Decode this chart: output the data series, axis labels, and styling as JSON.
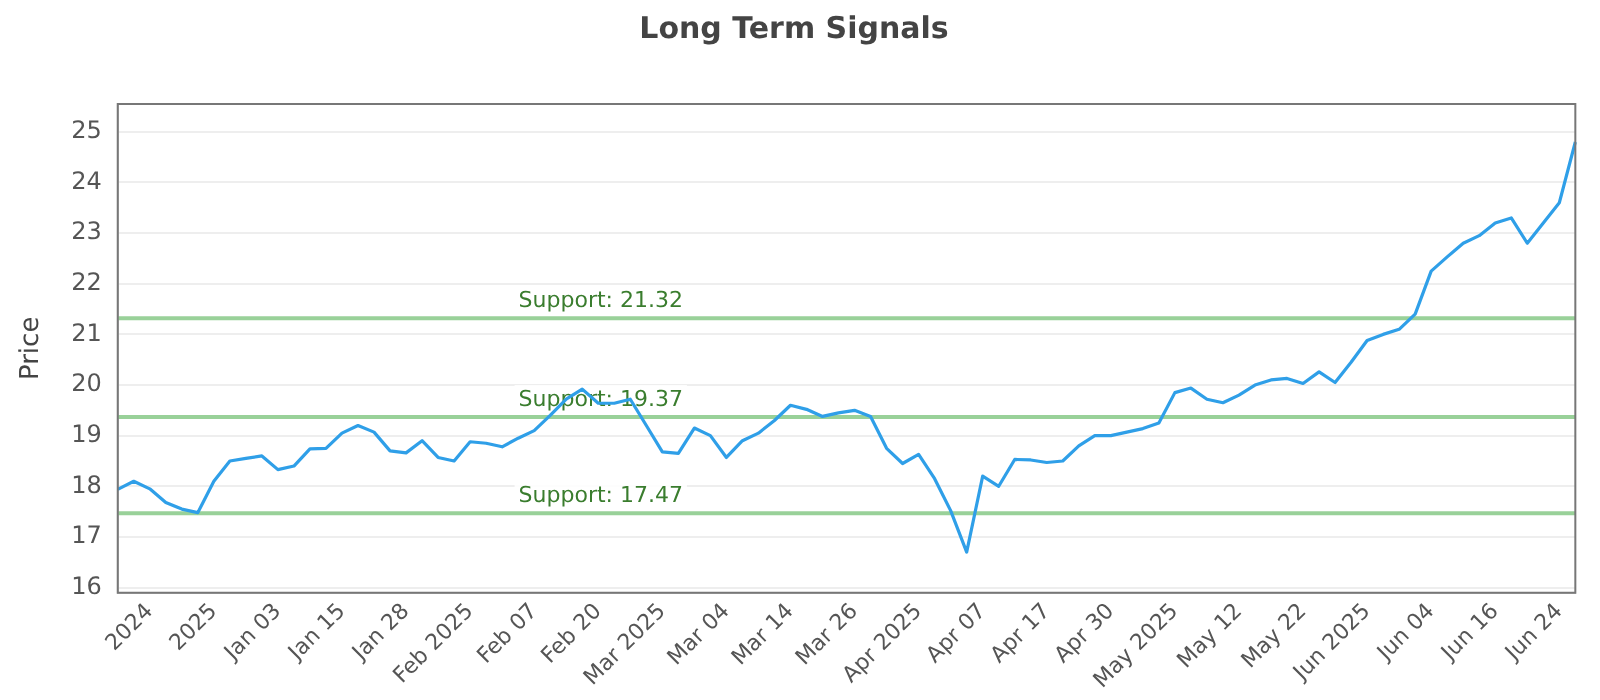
{
  "chart_data": {
    "type": "line",
    "title": "Long Term Signals",
    "ylabel": "Price",
    "categories": [
      null,
      null,
      "2024",
      null,
      null,
      null,
      "2025",
      null,
      null,
      null,
      "Jan 03",
      null,
      null,
      null,
      "Jan 15",
      null,
      null,
      null,
      "Jan 28",
      null,
      null,
      null,
      "Feb 2025",
      null,
      null,
      null,
      "Feb 07",
      null,
      null,
      null,
      "Feb 20",
      null,
      null,
      null,
      "Mar 2025",
      null,
      null,
      null,
      "Mar 04",
      null,
      null,
      null,
      "Mar 14",
      null,
      null,
      null,
      "Mar 26",
      null,
      null,
      null,
      "Apr 2025",
      null,
      null,
      null,
      "Apr 07",
      null,
      null,
      null,
      "Apr 17",
      null,
      null,
      null,
      "Apr 30",
      null,
      null,
      null,
      "May 2025",
      null,
      null,
      null,
      "May 12",
      null,
      null,
      null,
      "May 22",
      null,
      null,
      null,
      "Jun 2025",
      null,
      null,
      null,
      "Jun 04",
      null,
      null,
      null,
      "Jun 16",
      null,
      null,
      null,
      "Jun 24",
      null
    ],
    "series": [
      {
        "color": "#2f9fe8",
        "values": [
          17.94,
          18.1,
          17.95,
          17.68,
          17.55,
          17.48,
          18.1,
          18.5,
          18.55,
          18.6,
          18.33,
          18.4,
          18.74,
          18.75,
          19.05,
          19.2,
          19.07,
          18.7,
          18.66,
          18.9,
          18.57,
          18.5,
          18.88,
          18.85,
          18.78,
          18.95,
          19.1,
          19.4,
          19.72,
          19.92,
          19.64,
          19.64,
          19.72,
          19.2,
          18.68,
          18.65,
          19.15,
          19.0,
          18.57,
          18.9,
          19.05,
          19.3,
          19.6,
          19.52,
          19.38,
          19.45,
          19.5,
          19.38,
          18.75,
          18.45,
          18.63,
          18.15,
          17.52,
          16.7,
          18.2,
          18.0,
          18.53,
          18.52,
          18.47,
          18.5,
          18.8,
          19.0,
          19.0,
          19.07,
          19.14,
          19.25,
          19.85,
          19.94,
          19.72,
          19.65,
          19.8,
          20.0,
          20.1,
          20.13,
          20.03,
          20.26,
          20.05,
          20.45,
          20.88,
          21.0,
          21.1,
          21.4,
          22.25,
          22.53,
          22.8,
          22.95,
          23.2,
          23.3,
          22.8,
          23.2,
          23.6,
          24.8
        ]
      }
    ],
    "ylim": [
      15.9,
      25.55
    ],
    "yticks": [
      16,
      17,
      18,
      19,
      20,
      21,
      22,
      23,
      24,
      25
    ],
    "grid": "y",
    "legend": false,
    "marker": "none",
    "line_style": "solid",
    "ref_lines": [
      {
        "axis": "y",
        "value": 21.32,
        "label": "Support: 21.32",
        "color": "#99d199"
      },
      {
        "axis": "y",
        "value": 19.37,
        "label": "Support: 19.37",
        "color": "#99d199"
      },
      {
        "axis": "y",
        "value": 17.47,
        "label": "Support: 17.47",
        "color": "#99d199"
      }
    ]
  }
}
